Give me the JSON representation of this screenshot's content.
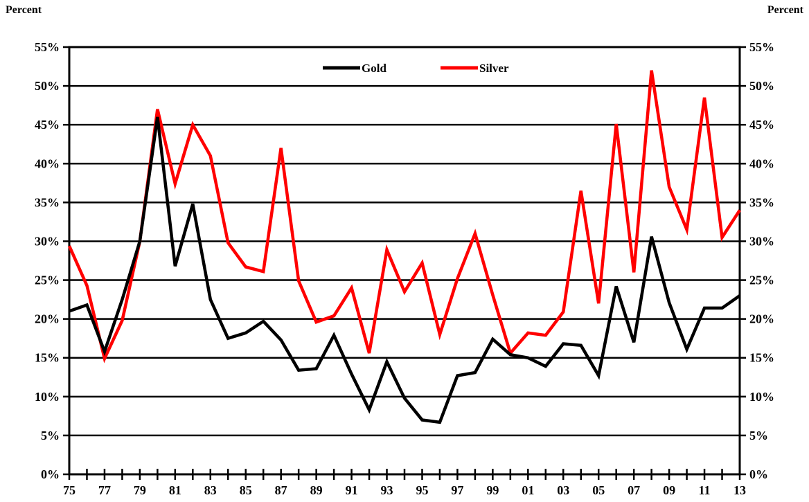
{
  "left_axis_unit": "Percent",
  "right_axis_unit": "Percent",
  "chart_data": {
    "type": "line",
    "x": [
      1975,
      1976,
      1977,
      1978,
      1979,
      1980,
      1981,
      1982,
      1983,
      1984,
      1985,
      1986,
      1987,
      1988,
      1989,
      1990,
      1991,
      1992,
      1993,
      1994,
      1995,
      1996,
      1997,
      1998,
      1999,
      2000,
      2001,
      2002,
      2003,
      2004,
      2005,
      2006,
      2007,
      2008,
      2009,
      2010,
      2011,
      2012,
      2013
    ],
    "x_tick_labels": [
      "75",
      "77",
      "79",
      "81",
      "83",
      "85",
      "87",
      "89",
      "91",
      "93",
      "95",
      "97",
      "99",
      "01",
      "03",
      "05",
      "07",
      "09",
      "11",
      "13"
    ],
    "x_tick_years": [
      1975,
      1977,
      1979,
      1981,
      1983,
      1985,
      1987,
      1989,
      1991,
      1993,
      1995,
      1997,
      1999,
      2001,
      2003,
      2005,
      2007,
      2009,
      2011,
      2013
    ],
    "y_tick_values": [
      0,
      5,
      10,
      15,
      20,
      25,
      30,
      35,
      40,
      45,
      50,
      55
    ],
    "y_tick_labels": [
      "0%",
      "5%",
      "10%",
      "15%",
      "20%",
      "25%",
      "30%",
      "35%",
      "40%",
      "45%",
      "50%",
      "55%"
    ],
    "ylim": [
      0,
      55
    ],
    "grid": true,
    "legend_position": "top-center",
    "series": [
      {
        "name": "Gold",
        "color": "#000000",
        "values": [
          21.0,
          21.8,
          15.8,
          22.5,
          30.0,
          46.0,
          26.8,
          34.8,
          22.5,
          17.5,
          18.2,
          19.7,
          17.3,
          13.4,
          13.6,
          17.9,
          12.9,
          8.3,
          14.5,
          9.8,
          7.0,
          6.7,
          12.7,
          13.1,
          17.4,
          15.4,
          15.0,
          13.9,
          16.8,
          16.6,
          12.7,
          24.2,
          17.0,
          30.6,
          22.1,
          16.1,
          21.4,
          21.4,
          23.0
        ]
      },
      {
        "name": "Silver",
        "color": "#ff0000",
        "values": [
          29.4,
          24.3,
          14.9,
          19.8,
          30.0,
          47.0,
          37.4,
          45.0,
          41.0,
          29.8,
          26.7,
          26.1,
          42.0,
          24.9,
          19.6,
          20.4,
          24.0,
          15.6,
          28.9,
          23.5,
          27.2,
          18.0,
          25.2,
          31.0,
          23.1,
          15.6,
          18.2,
          17.9,
          20.9,
          36.5,
          22.0,
          45.1,
          26.0,
          52.0,
          37.0,
          31.5,
          48.5,
          30.5,
          34.0
        ]
      }
    ]
  }
}
